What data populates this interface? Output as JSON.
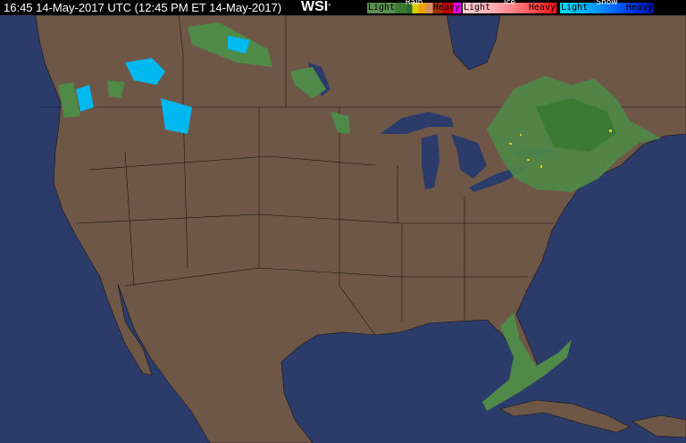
{
  "header": {
    "timestamp": "16:45 14-May-2017 UTC  (12:45 PM ET 14-May-2017)",
    "logo": "WSI",
    "logo_mark": "°"
  },
  "legend": [
    {
      "title": "Rain",
      "light_label": "Light",
      "heavy_label": "Heavy",
      "colors": [
        "#5a8f4e",
        "#3a7a34",
        "#2e6a2a",
        "#d8d000",
        "#f0a000",
        "#d89060",
        "#a03000",
        "#c00000",
        "#ff00ff"
      ]
    },
    {
      "title": "Ice",
      "light_label": "Light",
      "heavy_label": "Heavy",
      "colors": [
        "#ffd0d8",
        "#ffb0b8",
        "#ff8080",
        "#ff5050",
        "#ff1010"
      ]
    },
    {
      "title": "Snow",
      "light_label": "Light",
      "heavy_label": "Heavy",
      "colors": [
        "#00e0f0",
        "#00a0ff",
        "#0060ff",
        "#0030e0",
        "#0010a0"
      ]
    }
  ],
  "colors": {
    "land": "#6f5748",
    "water": "#2b3c6b",
    "border": "#1a1410"
  }
}
